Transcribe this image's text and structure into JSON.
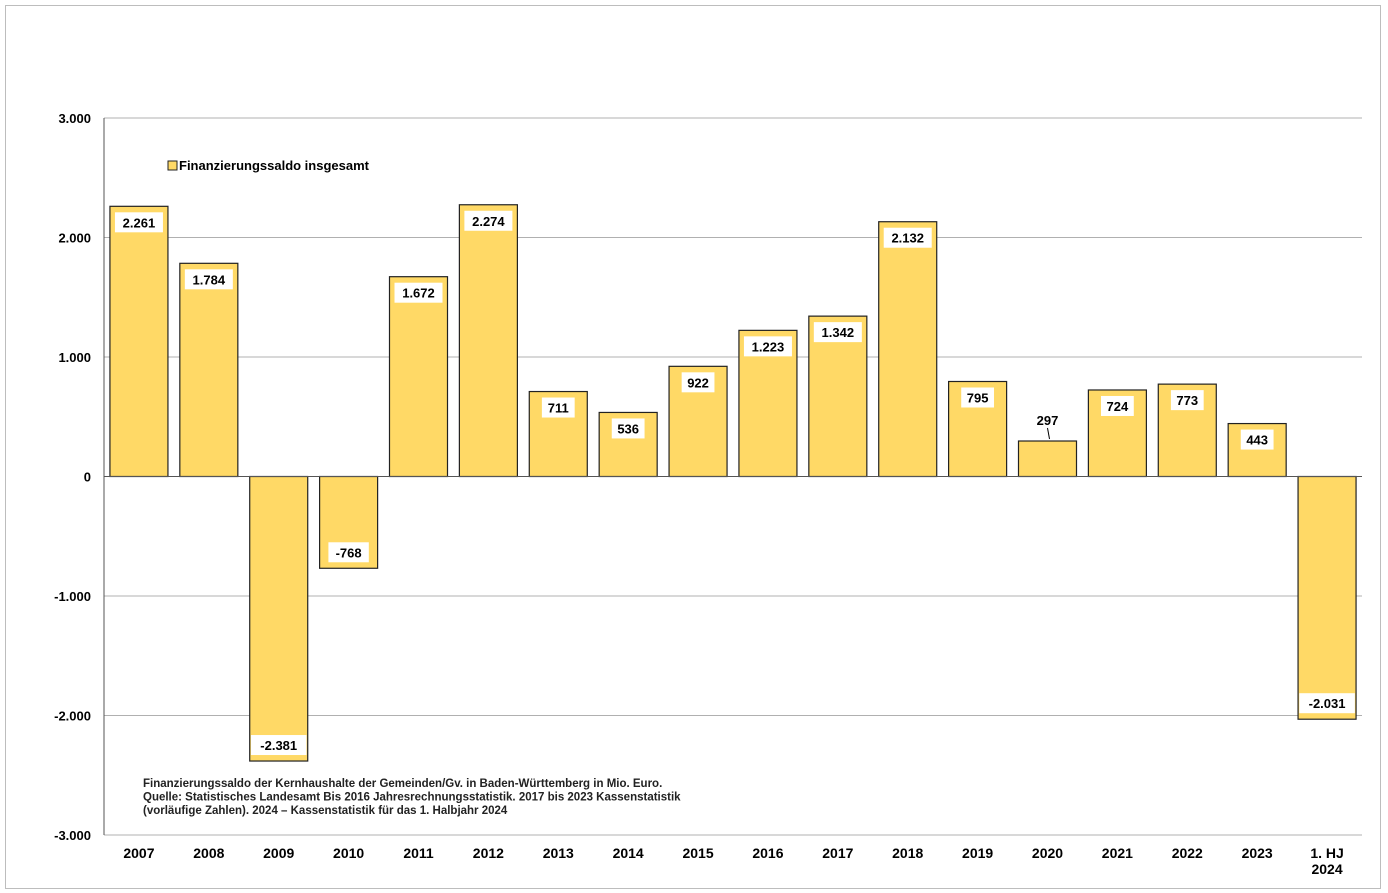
{
  "chart_data": {
    "type": "bar",
    "categories": [
      "2007",
      "2008",
      "2009",
      "2010",
      "2011",
      "2012",
      "2013",
      "2014",
      "2015",
      "2016",
      "2017",
      "2018",
      "2019",
      "2020",
      "2021",
      "2022",
      "2023",
      "1. HJ 2024"
    ],
    "category_lines": [
      [
        "2007"
      ],
      [
        "2008"
      ],
      [
        "2009"
      ],
      [
        "2010"
      ],
      [
        "2011"
      ],
      [
        "2012"
      ],
      [
        "2013"
      ],
      [
        "2014"
      ],
      [
        "2015"
      ],
      [
        "2016"
      ],
      [
        "2017"
      ],
      [
        "2018"
      ],
      [
        "2019"
      ],
      [
        "2020"
      ],
      [
        "2021"
      ],
      [
        "2022"
      ],
      [
        "2023"
      ],
      [
        "1. HJ",
        "2024"
      ]
    ],
    "series": [
      {
        "name": "Finanzierungssaldo insgesamt",
        "values": [
          2261,
          1784,
          -2381,
          -768,
          1672,
          2274,
          711,
          536,
          922,
          1223,
          1342,
          2132,
          795,
          297,
          724,
          773,
          443,
          -2031
        ],
        "labels": [
          "2.261",
          "1.784",
          "-2.381",
          "-768",
          "1.672",
          "2.274",
          "711",
          "536",
          "922",
          "1.223",
          "1.342",
          "2.132",
          "795",
          "297",
          "724",
          "773",
          "443",
          "-2.031"
        ],
        "color": "#FFD966"
      }
    ],
    "ylim": [
      -3000,
      3000
    ],
    "yticks": [
      3000,
      2000,
      1000,
      0,
      -1000,
      -2000,
      -3000
    ],
    "ytick_labels": [
      "3.000",
      "2.000",
      "1.000",
      "0",
      "-1.000",
      "-2.000",
      "-3.000"
    ],
    "grid": true,
    "legend_position": "top-left",
    "title": "",
    "xlabel": "",
    "ylabel": "",
    "note_lines": [
      "Finanzierungssaldo der Kernhaushalte der Gemeinden/Gv. in Baden-Württemberg in Mio. Euro.",
      "Quelle: Statistisches Landesamt Bis 2016 Jahresrechnungsstatistik. 2017 bis 2023 Kassenstatistik",
      "(vorläufige Zahlen). 2024 – Kassenstatistik für das 1. Halbjahr 2024"
    ]
  },
  "colors": {
    "bar_fill": "#FFD966",
    "bar_stroke": "#222222",
    "grid": "#b0b0b0",
    "axis": "#555555"
  }
}
